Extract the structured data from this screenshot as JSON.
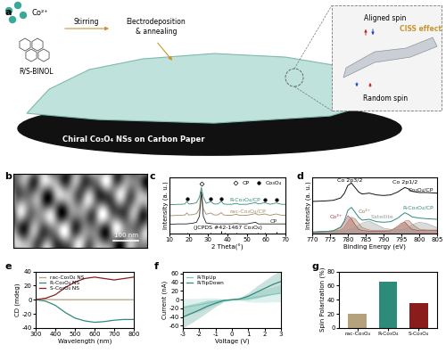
{
  "panels": [
    "a",
    "b",
    "c",
    "d",
    "e",
    "f",
    "g"
  ],
  "schematic": {
    "texts": {
      "ion": "Co²⁺",
      "ligand": "R/S-BINOL",
      "step1": "Stirring",
      "step2": "Electrodeposition\n& annealing",
      "spin_aligned": "Aligned spin",
      "spin_random": "Random spin",
      "effect": "CISS effect",
      "caption": "Chiral Co₃O₄ NSs on Carbon Paper"
    }
  },
  "image": {
    "scale_bar": "100 nm"
  },
  "chart_data": [
    {
      "type": "line",
      "x_label": "2 Theta(°)",
      "y_label": "Intensity (a. u.)",
      "xlim": [
        10,
        70
      ],
      "xticks": [
        10,
        20,
        30,
        40,
        50,
        60,
        70
      ],
      "ylim": [
        0,
        1.7
      ],
      "tick_labels": "x",
      "x": [
        10,
        12,
        14,
        16,
        18,
        19,
        20,
        22,
        24,
        25.5,
        26.5,
        27.5,
        29,
        31.3,
        33,
        35,
        36.8,
        38,
        40,
        42,
        44.8,
        46,
        50,
        54.5,
        56,
        59.4,
        62,
        65.2,
        68,
        70
      ],
      "series": [
        {
          "name": "R-Co₃O₄/CP",
          "color": "#2e8b7a",
          "values": [
            0.87,
            0.87,
            0.88,
            0.88,
            0.89,
            0.97,
            0.89,
            0.9,
            0.93,
            1.1,
            1.39,
            1.1,
            0.91,
            0.96,
            0.89,
            0.89,
            0.97,
            0.89,
            0.88,
            0.88,
            0.91,
            0.88,
            0.88,
            0.93,
            0.89,
            0.93,
            0.88,
            0.92,
            0.88,
            0.88
          ]
        },
        {
          "name": "rac-Co₃O₄/CP",
          "color": "#a08c64",
          "values": [
            0.54,
            0.54,
            0.55,
            0.55,
            0.56,
            0.62,
            0.56,
            0.57,
            0.6,
            0.75,
            1.3,
            0.75,
            0.58,
            0.62,
            0.56,
            0.56,
            0.63,
            0.56,
            0.55,
            0.55,
            0.58,
            0.55,
            0.55,
            0.6,
            0.56,
            0.59,
            0.55,
            0.59,
            0.55,
            0.55
          ]
        },
        {
          "name": "CP",
          "color": "#222222",
          "values": [
            0.28,
            0.28,
            0.29,
            0.29,
            0.29,
            0.29,
            0.3,
            0.31,
            0.34,
            0.52,
            1.25,
            0.52,
            0.32,
            0.3,
            0.29,
            0.29,
            0.29,
            0.29,
            0.29,
            0.29,
            0.3,
            0.29,
            0.29,
            0.34,
            0.29,
            0.29,
            0.29,
            0.29,
            0.29,
            0.29
          ]
        }
      ],
      "reference": {
        "name": "(JCPDS #42-1467 Co₃O₄)",
        "color": "#000000",
        "x": [
          19.0,
          31.3,
          36.8,
          38.5,
          44.8,
          55.7,
          59.4,
          65.2
        ],
        "values": [
          0.02,
          0.04,
          0.07,
          0.015,
          0.025,
          0.015,
          0.04,
          0.05
        ]
      },
      "peak_markers": [
        {
          "name": "CP",
          "marker": "diamond",
          "color": "#000000",
          "x": [
            26.5
          ],
          "values": [
            1.5
          ]
        },
        {
          "name": "Co₃O₄",
          "marker": "circle",
          "color": "#000000",
          "x": [
            19.0,
            31.3,
            36.8,
            59.4,
            65.2
          ],
          "values": [
            1.04,
            1.04,
            1.05,
            1.02,
            1.01
          ]
        }
      ],
      "legend": "upper right"
    },
    {
      "type": "line",
      "x_label": "Binding Energy (eV)",
      "y_label": "Intensity (a. u.)",
      "xlim": [
        770,
        805
      ],
      "xticks": [
        770,
        775,
        780,
        785,
        790,
        795,
        800,
        805
      ],
      "ylim": [
        0,
        1.9
      ],
      "tick_labels": "x",
      "x": [
        770,
        772,
        774,
        776,
        778,
        779,
        780,
        781,
        782,
        783,
        784,
        786,
        788,
        790,
        792,
        794,
        795,
        796,
        797,
        798,
        800,
        802,
        805
      ],
      "series": [
        {
          "name": "Co₃O₄/CP",
          "color": "#111111",
          "values": [
            1.08,
            1.09,
            1.1,
            1.12,
            1.2,
            1.35,
            1.62,
            1.7,
            1.55,
            1.4,
            1.33,
            1.36,
            1.3,
            1.28,
            1.3,
            1.4,
            1.48,
            1.55,
            1.5,
            1.42,
            1.38,
            1.38,
            1.36
          ]
        },
        {
          "name": "R-Co₃O₄/CP",
          "color": "#2e8b7a",
          "values": [
            0.05,
            0.06,
            0.07,
            0.1,
            0.22,
            0.42,
            0.78,
            0.88,
            0.72,
            0.55,
            0.45,
            0.48,
            0.4,
            0.38,
            0.4,
            0.52,
            0.62,
            0.7,
            0.64,
            0.56,
            0.52,
            0.5,
            0.48
          ]
        }
      ],
      "components": [
        {
          "name": "Co³⁺",
          "color": "#a0304a",
          "values": [
            0.05,
            0.06,
            0.07,
            0.09,
            0.2,
            0.38,
            0.6,
            0.5,
            0.3,
            0.15,
            0.1,
            0.08,
            0.08,
            0.08,
            0.09,
            0.25,
            0.35,
            0.38,
            0.25,
            0.14,
            0.1,
            0.1,
            0.1
          ]
        },
        {
          "name": "Co²⁺",
          "color": "#9c7a4c",
          "values": [
            0.05,
            0.06,
            0.07,
            0.08,
            0.12,
            0.2,
            0.4,
            0.55,
            0.5,
            0.35,
            0.2,
            0.12,
            0.1,
            0.1,
            0.12,
            0.2,
            0.3,
            0.42,
            0.45,
            0.32,
            0.15,
            0.12,
            0.12
          ]
        },
        {
          "name": "Satellite",
          "color": "#999999",
          "values": [
            0.05,
            0.06,
            0.07,
            0.08,
            0.09,
            0.1,
            0.12,
            0.15,
            0.2,
            0.28,
            0.35,
            0.42,
            0.3,
            0.18,
            0.14,
            0.14,
            0.14,
            0.15,
            0.2,
            0.3,
            0.38,
            0.34,
            0.2
          ]
        }
      ],
      "annotations": [
        "Co 2p3/2",
        "Co 2p1/2"
      ]
    },
    {
      "type": "line",
      "x_label": "Wavelength (nm)",
      "y_label": "CD (mdeg)",
      "xlim": [
        300,
        800
      ],
      "xticks": [
        300,
        400,
        500,
        600,
        700,
        800
      ],
      "ylim": [
        -40,
        40
      ],
      "yticks": [
        -40,
        -20,
        0,
        20,
        40
      ],
      "x": [
        300,
        350,
        400,
        450,
        500,
        550,
        600,
        650,
        700,
        750,
        800
      ],
      "series": [
        {
          "name": "rac-Co₃O₄ NS",
          "color": "#b5a27c",
          "values": [
            0,
            0.5,
            0,
            0,
            0,
            0,
            0,
            0,
            0,
            0,
            0
          ]
        },
        {
          "name": "R-Co₃O₄ NS",
          "color": "#2e8b7a",
          "values": [
            0,
            -2,
            -8,
            -18,
            -26,
            -30,
            -32,
            -31,
            -29,
            -28,
            -28
          ]
        },
        {
          "name": "S-Co₃O₄ NS",
          "color": "#8b1c1c",
          "values": [
            0,
            2,
            7,
            17,
            25,
            30,
            32,
            30,
            28,
            30,
            32
          ]
        }
      ],
      "legend": "upper left"
    },
    {
      "type": "line",
      "x_label": "Voltage (V)",
      "y_label": "Current (nA)",
      "xlim": [
        -3,
        3
      ],
      "xticks": [
        -3,
        -2,
        -1,
        0,
        1,
        2,
        3
      ],
      "ylim": [
        -65,
        65
      ],
      "yticks": [
        -60,
        -40,
        -20,
        0,
        20,
        40,
        60
      ],
      "x": [
        -3,
        -2.5,
        -2,
        -1.5,
        -1,
        -0.5,
        0,
        0.5,
        1,
        1.5,
        2,
        2.5,
        3
      ],
      "series": [
        {
          "name": "R-TipUp",
          "color": "#7fc8bd",
          "values": [
            -18,
            -15,
            -12,
            -8,
            -4,
            -1,
            0,
            1,
            3,
            6,
            9,
            12,
            15
          ],
          "error": [
            20,
            18,
            15,
            12,
            8,
            3,
            1,
            3,
            8,
            12,
            15,
            17,
            20
          ]
        },
        {
          "name": "R-TipDown",
          "color": "#2e8b7a",
          "values": [
            -40,
            -32,
            -24,
            -15,
            -8,
            -2,
            0,
            2,
            8,
            17,
            26,
            35,
            42
          ],
          "error": [
            25,
            22,
            18,
            14,
            8,
            3,
            1,
            3,
            8,
            14,
            18,
            22,
            25
          ]
        }
      ],
      "legend": "upper left"
    },
    {
      "type": "bar",
      "y_label": "Spin Polarization (%)",
      "categories": [
        "rac-Co₃O₄",
        "R-Co₃O₄",
        "S-Co₃O₄"
      ],
      "values": [
        20,
        65,
        35
      ],
      "colors": [
        "#b5a27c",
        "#2e8b7a",
        "#8b1c1c"
      ],
      "ylim": [
        0,
        80
      ],
      "yticks": [
        0,
        20,
        40,
        60,
        80
      ]
    }
  ]
}
